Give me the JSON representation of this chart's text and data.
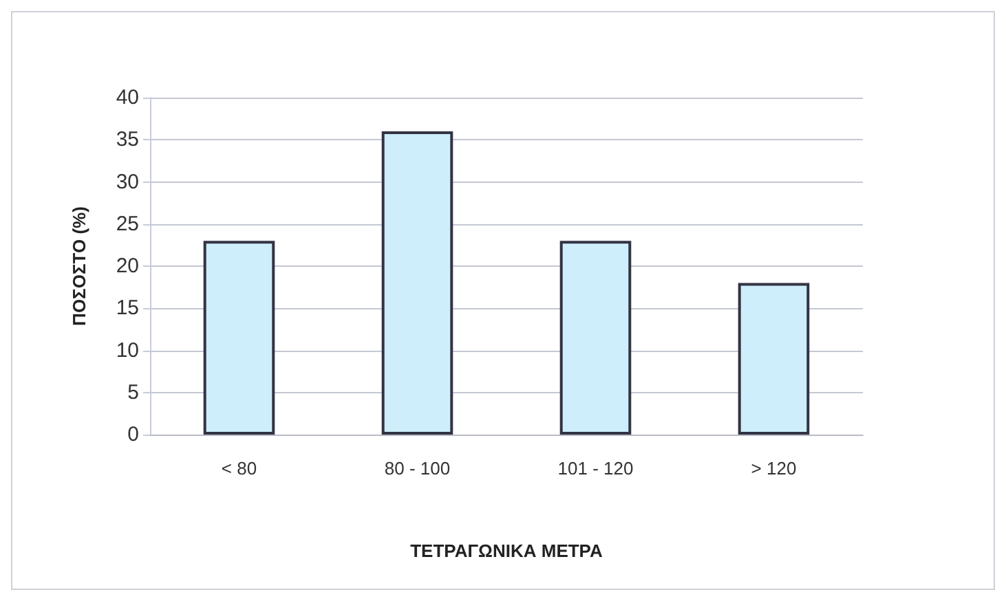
{
  "chart_data": {
    "type": "bar",
    "xlabel": "ΤΕΤΡΑΓΩΝΙΚΑ ΜΕΤΡΑ",
    "ylabel": "ΠΟΣΟΣΤΟ (%)",
    "categories": [
      "< 80",
      "80 - 100",
      "101 - 120",
      "> 120"
    ],
    "values": [
      23,
      36,
      23,
      18
    ],
    "color": "#cdeefa",
    "ylim": [
      0,
      40
    ],
    "yticks": [
      0,
      5,
      10,
      15,
      20,
      25,
      30,
      35,
      40
    ],
    "grid": "y"
  }
}
